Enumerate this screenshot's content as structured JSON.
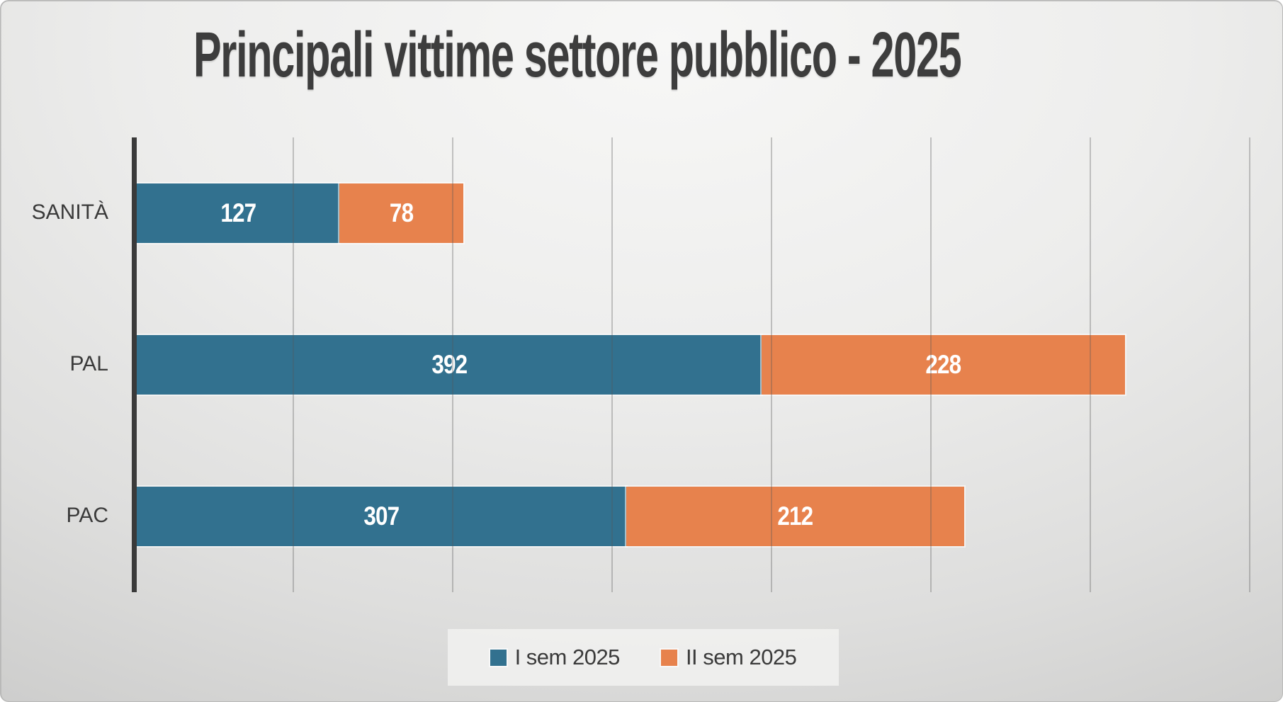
{
  "title": "Principali vittime settore pubblico - 2025",
  "chart_data": {
    "type": "bar",
    "orientation": "horizontal-stacked",
    "title": "Principali vittime settore pubblico - 2025",
    "categories": [
      "SANITÀ",
      "PAL",
      "PAC"
    ],
    "series": [
      {
        "name": "I sem 2025",
        "color": "#32718F",
        "values": [
          127,
          392,
          307
        ]
      },
      {
        "name": "II sem 2025",
        "color": "#E7824D",
        "values": [
          78,
          228,
          212
        ]
      }
    ],
    "totals": [
      205,
      620,
      519
    ],
    "xlabel": "",
    "ylabel": "",
    "xlim": [
      0,
      700
    ],
    "gridline_interval": 100,
    "grid": "vertical-only",
    "tick_labels_visible": false,
    "data_labels": "white bold numbers centered inside each segment",
    "legend_position": "bottom-center"
  },
  "colors": {
    "series_1": "#32718F",
    "series_2": "#E7824D",
    "axis_line": "#3a3a3a",
    "text": "#3a3a3a",
    "title_text": "#3d3d3d",
    "bar_value_text": "#ffffff",
    "background_light": "#f7f7f6",
    "background_dark": "#c1c1c0",
    "legend_background": "#f3f3f2"
  }
}
